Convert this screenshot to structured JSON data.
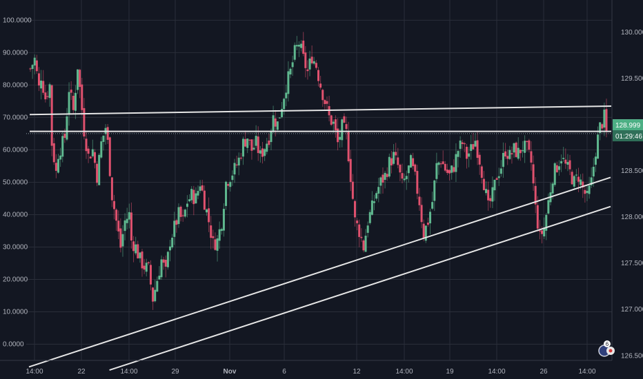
{
  "chart_data": {
    "type": "candlestick",
    "left_axis": {
      "ticks": [
        "100.0000",
        "90.0000",
        "80.0000",
        "70.0000",
        "60.0000",
        "50.0000",
        "40.0000",
        "30.0000",
        "20.0000",
        "10.0000",
        "0.0000"
      ],
      "range": [
        -5,
        102
      ]
    },
    "right_axis": {
      "ticks": [
        "130.000",
        "129.500",
        "129.000",
        "128.500",
        "128.000",
        "127.500",
        "127.000",
        "126.500"
      ],
      "range": [
        126.45,
        130.2
      ]
    },
    "x_axis": {
      "ticks": [
        {
          "label": "14:00",
          "bold": false
        },
        {
          "label": "22",
          "bold": false
        },
        {
          "label": "14:00",
          "bold": false
        },
        {
          "label": "29",
          "bold": false
        },
        {
          "label": "Nov",
          "bold": true
        },
        {
          "label": "6",
          "bold": false
        },
        {
          "label": "12",
          "bold": false
        },
        {
          "label": "14:00",
          "bold": false
        },
        {
          "label": "19",
          "bold": false
        },
        {
          "label": "14:00",
          "bold": false
        },
        {
          "label": "26",
          "bold": false
        },
        {
          "label": "14:00",
          "bold": false
        }
      ]
    },
    "last_price": "128.999",
    "countdown": "01:29:46",
    "grid": true,
    "colors": {
      "background": "#131722",
      "grid": "#2a2e39",
      "up": "#26a69a",
      "down": "#ef5350",
      "up_bright": "#5fb88f",
      "down_bright": "#e0516e",
      "trendline": "#e6e6e6",
      "axis_text": "#b2b5be",
      "price_tag": "#4caf84"
    },
    "close_path": [
      [
        0,
        85
      ],
      [
        2,
        88
      ],
      [
        4,
        79
      ],
      [
        5,
        83
      ],
      [
        7,
        76
      ],
      [
        9,
        80
      ],
      [
        10,
        62
      ],
      [
        12,
        53
      ],
      [
        13,
        59
      ],
      [
        15,
        62
      ],
      [
        16,
        64
      ],
      [
        18,
        79
      ],
      [
        20,
        72
      ],
      [
        22,
        86
      ],
      [
        23,
        79
      ],
      [
        25,
        66
      ],
      [
        27,
        58
      ],
      [
        29,
        60
      ],
      [
        31,
        52
      ],
      [
        33,
        62
      ],
      [
        35,
        67
      ],
      [
        36,
        62
      ],
      [
        38,
        46
      ],
      [
        40,
        38
      ],
      [
        42,
        30
      ],
      [
        44,
        38
      ],
      [
        46,
        40
      ],
      [
        47,
        32
      ],
      [
        49,
        30
      ],
      [
        51,
        26
      ],
      [
        53,
        24
      ],
      [
        55,
        23
      ],
      [
        57,
        14
      ],
      [
        59,
        20
      ],
      [
        61,
        26
      ],
      [
        63,
        22
      ],
      [
        65,
        32
      ],
      [
        67,
        36
      ],
      [
        69,
        40
      ],
      [
        71,
        38
      ],
      [
        73,
        44
      ],
      [
        75,
        46
      ],
      [
        77,
        45
      ],
      [
        79,
        50
      ],
      [
        81,
        44
      ],
      [
        83,
        38
      ],
      [
        85,
        31
      ],
      [
        87,
        32
      ],
      [
        89,
        38
      ],
      [
        91,
        50
      ],
      [
        93,
        52
      ],
      [
        95,
        54
      ],
      [
        97,
        57
      ],
      [
        99,
        62
      ],
      [
        101,
        64
      ],
      [
        103,
        60
      ],
      [
        105,
        62
      ],
      [
        107,
        58
      ],
      [
        109,
        61
      ],
      [
        111,
        64
      ],
      [
        113,
        70
      ],
      [
        115,
        68
      ],
      [
        117,
        74
      ],
      [
        119,
        80
      ],
      [
        121,
        84
      ],
      [
        123,
        90
      ],
      [
        125,
        93
      ],
      [
        127,
        88
      ],
      [
        129,
        84
      ],
      [
        131,
        89
      ],
      [
        133,
        86
      ],
      [
        135,
        80
      ],
      [
        137,
        75
      ],
      [
        139,
        70
      ],
      [
        141,
        68
      ],
      [
        143,
        62
      ],
      [
        145,
        67
      ],
      [
        147,
        65
      ],
      [
        149,
        52
      ],
      [
        151,
        38
      ],
      [
        153,
        35
      ],
      [
        155,
        30
      ],
      [
        157,
        38
      ],
      [
        159,
        42
      ],
      [
        161,
        47
      ],
      [
        163,
        50
      ],
      [
        165,
        52
      ],
      [
        167,
        56
      ],
      [
        169,
        58
      ],
      [
        171,
        55
      ],
      [
        173,
        49
      ],
      [
        175,
        52
      ],
      [
        177,
        56
      ],
      [
        179,
        51
      ],
      [
        181,
        44
      ],
      [
        183,
        34
      ],
      [
        185,
        38
      ],
      [
        187,
        44
      ],
      [
        189,
        55
      ],
      [
        191,
        57
      ],
      [
        193,
        54
      ],
      [
        195,
        52
      ],
      [
        197,
        55
      ],
      [
        199,
        60
      ],
      [
        201,
        62
      ],
      [
        203,
        58
      ],
      [
        205,
        60
      ],
      [
        207,
        63
      ],
      [
        209,
        57
      ],
      [
        211,
        50
      ],
      [
        213,
        42
      ],
      [
        215,
        46
      ],
      [
        217,
        52
      ],
      [
        219,
        55
      ],
      [
        221,
        60
      ],
      [
        223,
        58
      ],
      [
        225,
        60
      ],
      [
        227,
        59
      ],
      [
        229,
        61
      ],
      [
        231,
        60
      ],
      [
        233,
        56
      ],
      [
        235,
        42
      ],
      [
        237,
        33
      ],
      [
        239,
        36
      ],
      [
        241,
        44
      ],
      [
        243,
        52
      ],
      [
        245,
        55
      ],
      [
        247,
        58
      ],
      [
        249,
        55
      ],
      [
        251,
        53
      ],
      [
        253,
        50
      ],
      [
        255,
        52
      ],
      [
        257,
        48
      ],
      [
        259,
        45
      ],
      [
        261,
        50
      ],
      [
        263,
        60
      ],
      [
        265,
        67
      ],
      [
        267,
        70
      ],
      [
        268,
        65
      ]
    ],
    "highlight_levels": [
      71.8,
      65.7,
      65.0
    ],
    "upper_resistance": [
      70.9,
      73.5
    ],
    "channel_upper": {
      "from": [
        0,
        -7
      ],
      "to": [
        268,
        51.5
      ]
    },
    "channel_lower": {
      "from": [
        40,
        -8
      ],
      "to": [
        268,
        42.5
      ]
    }
  },
  "watermark": {
    "badge_count": "6"
  }
}
